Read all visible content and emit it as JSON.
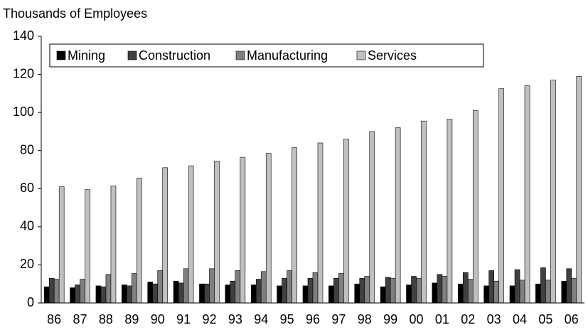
{
  "chart_data": {
    "type": "bar",
    "title": "Thousands of Employees",
    "categories": [
      "86",
      "87",
      "88",
      "89",
      "90",
      "91",
      "92",
      "93",
      "94",
      "95",
      "96",
      "97",
      "98",
      "99",
      "00",
      "01",
      "02",
      "03",
      "04",
      "05",
      "06"
    ],
    "series": [
      {
        "name": "Mining",
        "color": "#000000",
        "values": [
          8.5,
          8,
          9,
          9.5,
          11,
          11.5,
          10,
          9.5,
          9.5,
          9,
          9,
          9,
          10,
          8.5,
          9.5,
          10.5,
          10,
          9,
          9,
          10,
          11.5
        ]
      },
      {
        "name": "Construction",
        "color": "#404040",
        "values": [
          13,
          9.5,
          8.5,
          9,
          10,
          10.5,
          10,
          11.5,
          12.5,
          13,
          13,
          13,
          13,
          13.5,
          14,
          15,
          16,
          17,
          17.5,
          18.5,
          18
        ]
      },
      {
        "name": "Manufacturing",
        "color": "#808080",
        "values": [
          12.5,
          12.5,
          15,
          15.5,
          17,
          18,
          18,
          17,
          16.5,
          17,
          16,
          15.5,
          14,
          13,
          13,
          14,
          12.5,
          11.5,
          12,
          12,
          13
        ]
      },
      {
        "name": "Services",
        "color": "#c0c0c0",
        "values": [
          61,
          59.5,
          61.5,
          65.5,
          71,
          72,
          74.5,
          76.5,
          78.5,
          81.5,
          84,
          86,
          90,
          92,
          95.5,
          96.5,
          101,
          112.5,
          114,
          117,
          119
        ]
      }
    ],
    "ylim": [
      0,
      140
    ],
    "yticks": [
      0,
      20,
      40,
      60,
      80,
      100,
      120,
      140
    ],
    "grid": false,
    "legend": "top-left"
  }
}
